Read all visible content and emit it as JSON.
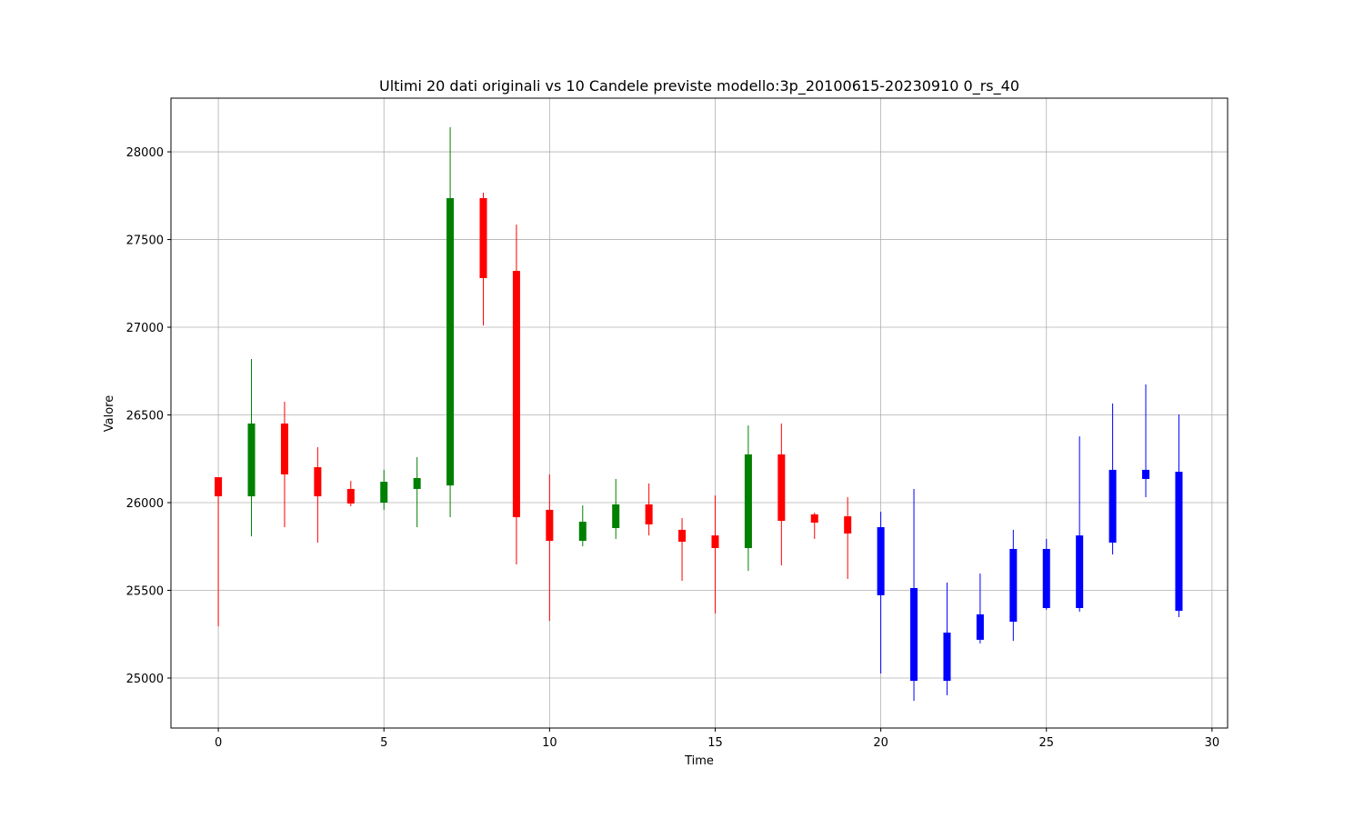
{
  "chart_data": {
    "type": "candlestick",
    "title": "Ultimi 20 dati originali vs 10 Candele previste modello:3p_20100615-20230910 0_rs_40",
    "x_label": "Time",
    "y_label": "Valore",
    "x": [
      0,
      1,
      2,
      3,
      4,
      5,
      6,
      7,
      8,
      9,
      10,
      11,
      12,
      13,
      14,
      15,
      16,
      17,
      18,
      19,
      20,
      21,
      22,
      23,
      24,
      25,
      26,
      27,
      28,
      29
    ],
    "open": [
      26145,
      26036,
      26451,
      26202,
      26078,
      26000,
      26078,
      26098,
      27736,
      27321,
      25959,
      25782,
      25855,
      25990,
      25845,
      25813,
      25741,
      26275,
      25933,
      25922,
      25860,
      25513,
      25259,
      25363,
      25736,
      25736,
      25813,
      26187,
      26187,
      26176
    ],
    "high": [
      26145,
      26819,
      26575,
      26316,
      26124,
      26187,
      26259,
      28140,
      27767,
      27585,
      26161,
      25984,
      26135,
      26109,
      25912,
      26041,
      26440,
      26451,
      25943,
      26031,
      25948,
      26078,
      25544,
      25596,
      25845,
      25793,
      26378,
      26565,
      26674,
      26503
    ],
    "low": [
      25295,
      25808,
      25860,
      25772,
      25979,
      25959,
      25860,
      25917,
      27010,
      25648,
      25326,
      25751,
      25793,
      25813,
      25554,
      25368,
      25611,
      25642,
      25793,
      25565,
      25026,
      24870,
      24902,
      25197,
      25212,
      25389,
      25378,
      25705,
      26031,
      25347
    ],
    "close": [
      26036,
      26451,
      26161,
      26036,
      25995,
      26119,
      26140,
      27736,
      27280,
      25917,
      25782,
      25891,
      25990,
      25876,
      25777,
      25741,
      26275,
      25896,
      25886,
      25824,
      25472,
      24984,
      24984,
      25218,
      25321,
      25399,
      25399,
      25772,
      26135,
      25383
    ],
    "colors": [
      "red",
      "green",
      "red",
      "red",
      "red",
      "green",
      "green",
      "green",
      "red",
      "red",
      "red",
      "green",
      "green",
      "red",
      "red",
      "red",
      "green",
      "red",
      "red",
      "red",
      "blue",
      "blue",
      "blue",
      "blue",
      "blue",
      "blue",
      "blue",
      "blue",
      "blue",
      "blue"
    ],
    "xlim": [
      -1.43,
      30.47
    ],
    "ylim": [
      24715,
      28306
    ],
    "xticks": [
      0,
      5,
      10,
      15,
      20,
      25,
      30
    ],
    "yticks": [
      25000,
      25500,
      26000,
      26500,
      27000,
      27500,
      28000
    ],
    "grid": true
  }
}
